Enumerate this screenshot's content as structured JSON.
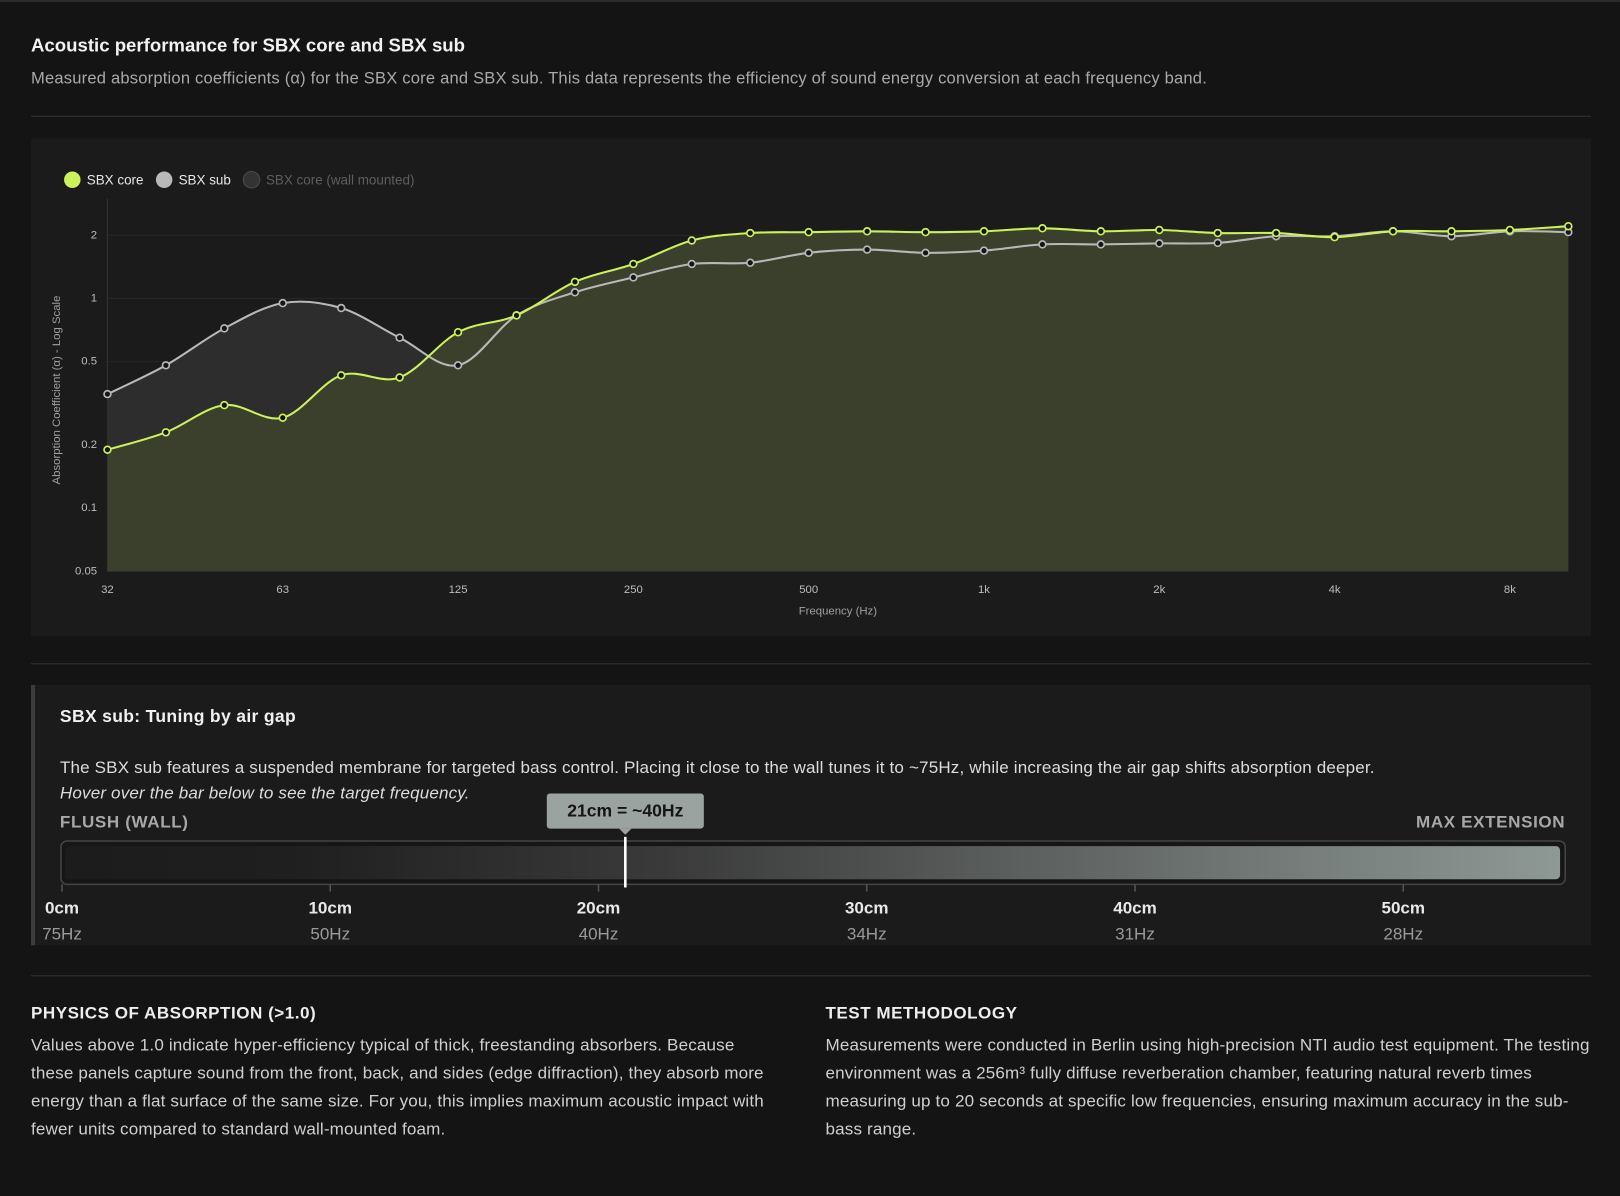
{
  "header": {
    "title": "Acoustic performance for SBX core and SBX sub",
    "description": "Measured absorption coefficients (α) for the SBX core and SBX sub. This data represents the efficiency of sound energy conversion at each frequency band."
  },
  "chart_data": {
    "type": "line",
    "x_label": "Frequency (Hz)",
    "y_label": "Absorption Coefficient (α) - Log Scale",
    "categories": [
      "32",
      null,
      null,
      "63",
      null,
      null,
      "125",
      null,
      null,
      "250",
      null,
      null,
      "500",
      null,
      null,
      "1k",
      null,
      null,
      "2k",
      null,
      null,
      "4k",
      null,
      null,
      "8k",
      null
    ],
    "series": [
      {
        "name": "SBX core",
        "color": "#ccf25a",
        "fill": "#3b402c",
        "visible": true,
        "values": [
          0.19,
          0.23,
          0.31,
          0.27,
          0.43,
          0.42,
          0.69,
          0.83,
          1.2,
          1.46,
          1.89,
          2.05,
          2.07,
          2.09,
          2.07,
          2.09,
          2.16,
          2.09,
          2.12,
          2.05,
          2.05,
          1.96,
          2.09,
          2.09,
          2.12,
          2.21
        ]
      },
      {
        "name": "SBX sub",
        "color": "#b8b8b8",
        "fill": "#2d2d2e",
        "visible": true,
        "values": [
          0.35,
          0.48,
          0.72,
          0.95,
          0.9,
          0.65,
          0.48,
          0.83,
          1.07,
          1.26,
          1.46,
          1.48,
          1.65,
          1.71,
          1.65,
          1.69,
          1.81,
          1.81,
          1.83,
          1.84,
          1.98,
          1.98,
          2.09,
          1.98,
          2.09,
          2.07
        ]
      },
      {
        "name": "SBX core (wall mounted)",
        "color": "#333333",
        "fill": "#333333",
        "visible": false,
        "values": [
          null,
          null,
          null,
          null,
          null,
          null,
          null,
          null,
          null,
          null,
          null,
          null,
          null,
          null,
          null,
          null,
          null,
          null,
          null,
          null,
          null,
          null,
          null,
          null,
          null,
          null
        ]
      }
    ],
    "log_y": true,
    "ylim": [
      0.05,
      3
    ],
    "yticks": [
      0.05,
      0.1,
      0.2,
      0.5,
      1,
      2
    ],
    "grid": true,
    "legend": "top-left"
  },
  "tuning": {
    "title": "SBX sub: Tuning by air gap",
    "description": "The SBX sub features a suspended membrane for targeted bass control. Placing it close to the wall tunes it to ~75Hz, while increasing the air gap shifts absorption deeper.",
    "hint": "Hover over the bar below to see the target frequency.",
    "left_label": "FLUSH (WALL)",
    "right_label": "MAX EXTENSION",
    "tooltip": "21cm = ~40Hz",
    "marker": 21,
    "range": [
      0,
      56
    ],
    "ticks": [
      {
        "value": 0,
        "label": "0cm",
        "frequency": "75Hz"
      },
      {
        "value": 10,
        "label": "10cm",
        "frequency": "50Hz"
      },
      {
        "value": 20,
        "label": "20cm",
        "frequency": "40Hz"
      },
      {
        "value": 30,
        "label": "30cm",
        "frequency": "34Hz"
      },
      {
        "value": 40,
        "label": "40cm",
        "frequency": "31Hz"
      },
      {
        "value": 50,
        "label": "50cm",
        "frequency": "28Hz"
      }
    ]
  },
  "notes": [
    {
      "heading": "PHYSICS OF ABSORPTION (>1.0)",
      "text": "Values above 1.0 indicate hyper-efficiency typical of thick, freestanding absorbers. Because these panels capture sound from the front, back, and sides (edge diffraction), they absorb more energy than a flat surface of the same size. For you, this implies maximum acoustic impact with fewer units compared to standard wall-mounted foam."
    },
    {
      "heading": "TEST METHODOLOGY",
      "text": "Measurements were conducted in Berlin using high-precision NTI audio test equipment. The testing environment was a 256m³ fully diffuse reverberation chamber, featuring natural reverb times measuring up to 20 seconds at specific low frequencies, ensuring maximum accuracy in the sub-bass range."
    }
  ]
}
